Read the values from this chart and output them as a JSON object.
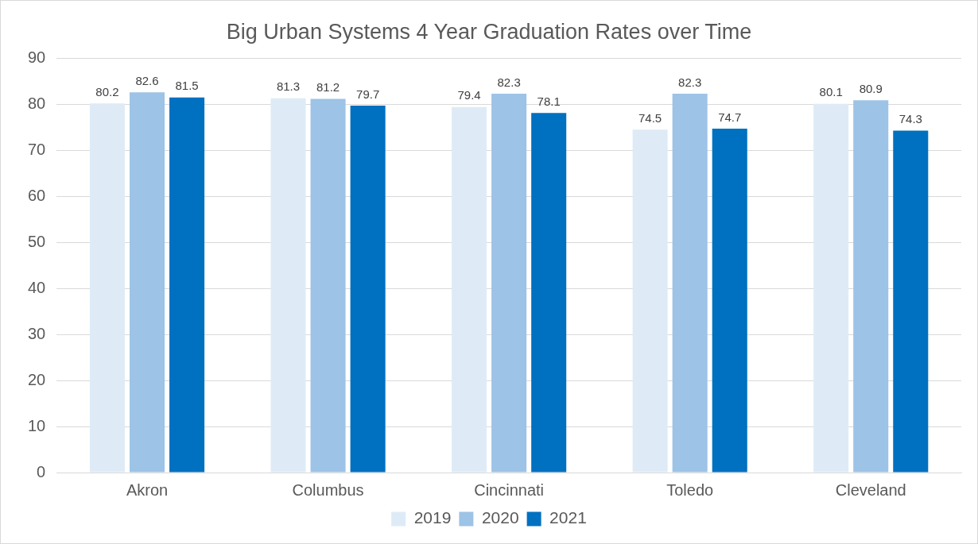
{
  "chart_data": {
    "type": "bar",
    "title": "Big Urban Systems 4 Year Graduation Rates over Time",
    "categories": [
      "Akron",
      "Columbus",
      "Cincinnati",
      "Toledo",
      "Cleveland"
    ],
    "series": [
      {
        "name": "2019",
        "color": "#deebf7",
        "values": [
          80.2,
          81.3,
          79.4,
          74.5,
          80.1
        ]
      },
      {
        "name": "2020",
        "color": "#9dc3e6",
        "values": [
          82.6,
          81.2,
          82.3,
          82.3,
          80.9
        ]
      },
      {
        "name": "2021",
        "color": "#0070c0",
        "values": [
          81.5,
          79.7,
          78.1,
          74.7,
          74.3
        ]
      }
    ],
    "ylim": [
      0,
      90
    ],
    "yticks": [
      0,
      10,
      20,
      30,
      40,
      50,
      60,
      70,
      80,
      90
    ],
    "grid": "y",
    "legend": "bottom",
    "data_labels": true
  }
}
